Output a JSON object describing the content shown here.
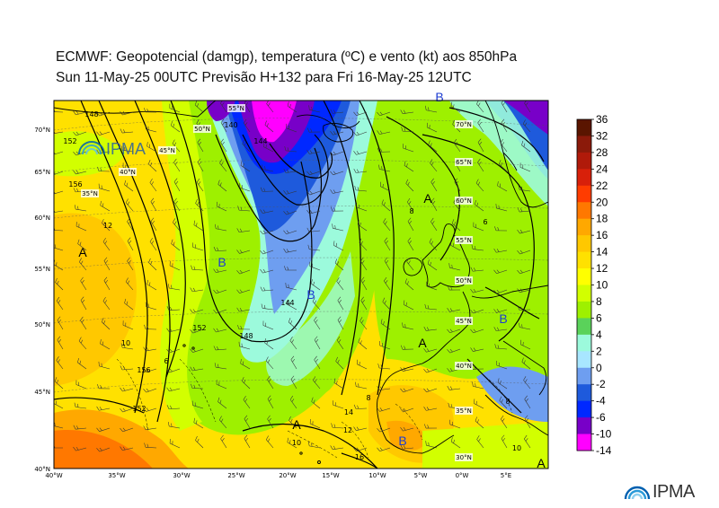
{
  "header": {
    "line1": "ECMWF:  Geopotencial (damgp), temperatura (ºC) e vento (kt) aos 850hPa",
    "line2": "Sun 11-May-25 00UTC Previsão H+132 para Fri 16-May-25 12UTC"
  },
  "watermark": {
    "text": "IPMA"
  },
  "brand": {
    "text": "IPMA"
  },
  "colorbar": {
    "labels": [
      "36",
      "32",
      "28",
      "24",
      "22",
      "20",
      "18",
      "16",
      "14",
      "12",
      "10",
      "8",
      "6",
      "4",
      "2",
      "0",
      "-2",
      "-4",
      "-6",
      "-10",
      "-14"
    ],
    "colors": [
      "#5a1500",
      "#8b1a0a",
      "#b01a0a",
      "#d8200a",
      "#ff3c00",
      "#ff7800",
      "#ffa800",
      "#ffc800",
      "#ffe100",
      "#ffff00",
      "#d2ff00",
      "#9ef000",
      "#5ad25a",
      "#9cfadc",
      "#a8e6ff",
      "#6e9ef0",
      "#1e5adc",
      "#0028ff",
      "#7800c8",
      "#ff00ff"
    ]
  },
  "map": {
    "lon_labels": [
      "40°W",
      "35°W",
      "30°W",
      "25°W",
      "20°W",
      "15°W",
      "10°W",
      "5°W",
      "0°W",
      "5°E"
    ],
    "lat_labels": [
      "70°N",
      "65°N",
      "60°N",
      "55°N",
      "50°N",
      "45°N",
      "40°N"
    ],
    "grid_labels": [
      "55°N",
      "50°N",
      "45°N",
      "40°N",
      "35°N",
      "70°N",
      "65°N",
      "60°N",
      "55°N",
      "50°N",
      "45°N",
      "40°N",
      "35°N",
      "30°N"
    ],
    "pressure_centers": [
      {
        "type": "A",
        "color": "#000000"
      },
      {
        "type": "B",
        "color": "#1e3cd2"
      },
      {
        "type": "B",
        "color": "#1e3cd2"
      },
      {
        "type": "B",
        "color": "#1e3cd2"
      },
      {
        "type": "A",
        "color": "#000000"
      },
      {
        "type": "A",
        "color": "#000000"
      },
      {
        "type": "A",
        "color": "#000000"
      },
      {
        "type": "B",
        "color": "#1e3cd2"
      },
      {
        "type": "B",
        "color": "#1e3cd2"
      },
      {
        "type": "A",
        "color": "#000000"
      }
    ],
    "contour_labels": [
      "148",
      "152",
      "156",
      "140",
      "144",
      "148",
      "152",
      "156",
      "152",
      "144",
      "12",
      "10",
      "6",
      "10",
      "12",
      "14",
      "8",
      "8",
      "10",
      "16",
      "6",
      "8"
    ]
  }
}
